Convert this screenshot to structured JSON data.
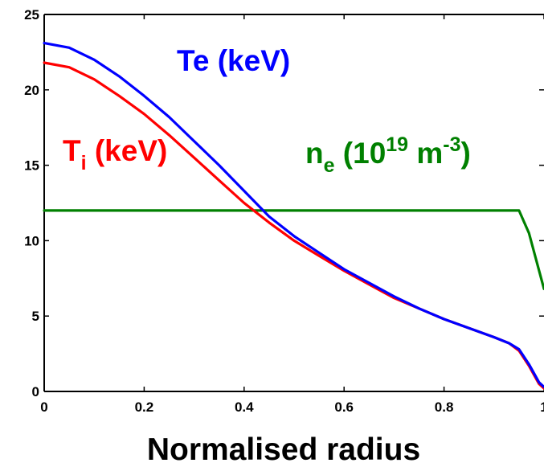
{
  "chart_data": {
    "type": "line",
    "title": "",
    "xlabel": "Normalised radius",
    "ylabel": "",
    "xlim": [
      0,
      1
    ],
    "ylim": [
      0,
      25
    ],
    "grid": false,
    "x_ticks": [
      "0",
      "0.2",
      "0.4",
      "0.6",
      "0.8",
      "1"
    ],
    "y_ticks": [
      "0",
      "5",
      "10",
      "15",
      "20",
      "25"
    ],
    "series": [
      {
        "name": "Te (keV)",
        "color": "#0000ff",
        "x": [
          0,
          0.05,
          0.1,
          0.15,
          0.2,
          0.25,
          0.3,
          0.35,
          0.4,
          0.45,
          0.5,
          0.55,
          0.6,
          0.65,
          0.7,
          0.75,
          0.8,
          0.85,
          0.9,
          0.93,
          0.95,
          0.97,
          0.99,
          1.0
        ],
        "y": [
          23.1,
          22.8,
          22.0,
          20.9,
          19.6,
          18.2,
          16.6,
          15.0,
          13.3,
          11.6,
          10.3,
          9.2,
          8.1,
          7.2,
          6.3,
          5.5,
          4.8,
          4.2,
          3.6,
          3.2,
          2.8,
          1.8,
          0.6,
          0.3
        ]
      },
      {
        "name": "T_i (keV)",
        "label_main": "T",
        "label_sub": "i",
        "label_rest": " (keV)",
        "color": "#ff0000",
        "x": [
          0,
          0.05,
          0.1,
          0.15,
          0.2,
          0.25,
          0.3,
          0.35,
          0.4,
          0.45,
          0.5,
          0.55,
          0.6,
          0.65,
          0.7,
          0.75,
          0.8,
          0.85,
          0.9,
          0.93,
          0.95,
          0.97,
          0.99,
          1.0
        ],
        "y": [
          21.8,
          21.5,
          20.7,
          19.6,
          18.4,
          17.0,
          15.5,
          14.0,
          12.5,
          11.2,
          10.0,
          9.0,
          8.0,
          7.1,
          6.2,
          5.5,
          4.8,
          4.2,
          3.6,
          3.2,
          2.7,
          1.7,
          0.5,
          0.2
        ]
      },
      {
        "name": "n_e (10^19 m^-3)",
        "label_main": "n",
        "label_sub": "e",
        "label_mid": " (10",
        "label_sup1": "19",
        "label_mid2": " m",
        "label_sup2": "-3",
        "label_end": ")",
        "color": "#008000",
        "x": [
          0,
          0.2,
          0.4,
          0.6,
          0.8,
          0.95,
          0.97,
          1.0
        ],
        "y": [
          12.0,
          12.0,
          12.0,
          12.0,
          12.0,
          12.0,
          10.5,
          6.8
        ]
      }
    ]
  }
}
